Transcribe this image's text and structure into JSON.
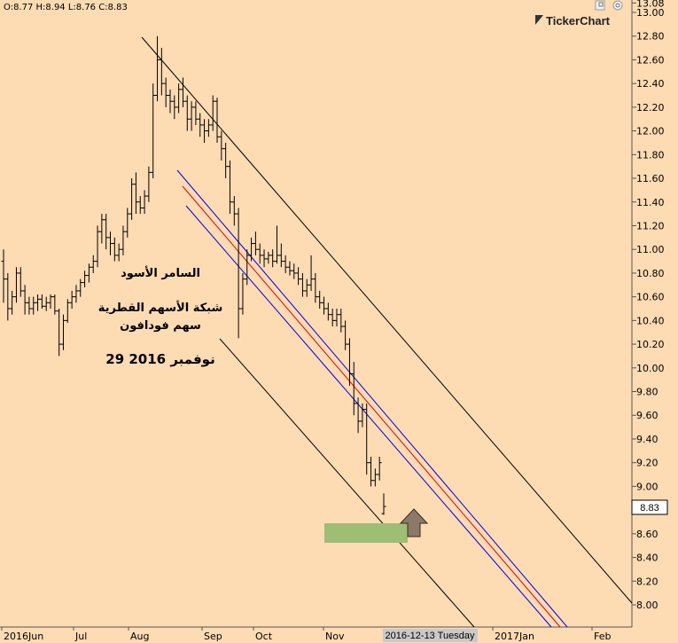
{
  "header": {
    "ohlc": "O:8.77  H:8.94  L:8.76  C:8.83",
    "brand": "TickerChart"
  },
  "annotations": {
    "line1": "السامر الأسود",
    "line2": "شبكة الأسهم القطرية",
    "line3": "سهم فودافون",
    "line4": "29 نوفمبر 2016"
  },
  "current_price_label": "8.83",
  "date_marker": "2016-12-13 Tuesday",
  "chart_data": {
    "type": "ohlc",
    "title": "",
    "ylim": [
      7.93,
      13.08
    ],
    "y_ticks": [
      "13.08",
      "13.00",
      "12.80",
      "12.60",
      "12.40",
      "12.20",
      "12.00",
      "11.80",
      "11.60",
      "11.40",
      "11.20",
      "11.00",
      "10.80",
      "10.60",
      "10.40",
      "10.20",
      "10.00",
      "9.80",
      "9.60",
      "9.40",
      "9.20",
      "9.00",
      "8.80",
      "8.60",
      "8.40",
      "8.20",
      "8.00"
    ],
    "x_ticks": [
      "2016Jun",
      "Jul",
      "Aug",
      "Sep",
      "Oct",
      "Nov",
      "2017Jan",
      "Feb"
    ],
    "last_close": 8.83,
    "bars": [
      [
        10.9,
        11.0,
        10.55,
        10.75
      ],
      [
        10.75,
        10.8,
        10.4,
        10.5
      ],
      [
        10.5,
        10.65,
        10.45,
        10.6
      ],
      [
        10.6,
        10.85,
        10.55,
        10.8
      ],
      [
        10.8,
        10.85,
        10.6,
        10.65
      ],
      [
        10.65,
        10.7,
        10.45,
        10.55
      ],
      [
        10.55,
        10.6,
        10.45,
        10.5
      ],
      [
        10.5,
        10.6,
        10.45,
        10.55
      ],
      [
        10.55,
        10.62,
        10.48,
        10.58
      ],
      [
        10.58,
        10.62,
        10.5,
        10.52
      ],
      [
        10.52,
        10.6,
        10.48,
        10.55
      ],
      [
        10.55,
        10.62,
        10.5,
        10.6
      ],
      [
        10.6,
        10.62,
        10.45,
        10.48
      ],
      [
        10.48,
        10.5,
        10.1,
        10.2
      ],
      [
        10.2,
        10.45,
        10.15,
        10.4
      ],
      [
        10.4,
        10.58,
        10.38,
        10.55
      ],
      [
        10.55,
        10.65,
        10.5,
        10.6
      ],
      [
        10.6,
        10.7,
        10.55,
        10.65
      ],
      [
        10.65,
        10.75,
        10.6,
        10.72
      ],
      [
        10.72,
        10.82,
        10.68,
        10.78
      ],
      [
        10.78,
        10.88,
        10.72,
        10.85
      ],
      [
        10.85,
        10.95,
        10.8,
        10.9
      ],
      [
        10.9,
        11.2,
        10.85,
        11.15
      ],
      [
        11.15,
        11.3,
        11.05,
        11.25
      ],
      [
        11.25,
        11.3,
        11.0,
        11.1
      ],
      [
        11.1,
        11.15,
        10.95,
        11.05
      ],
      [
        11.05,
        11.1,
        10.9,
        10.95
      ],
      [
        10.95,
        11.05,
        10.9,
        11.0
      ],
      [
        11.0,
        11.2,
        10.95,
        11.15
      ],
      [
        11.15,
        11.35,
        11.1,
        11.3
      ],
      [
        11.3,
        11.6,
        11.25,
        11.55
      ],
      [
        11.55,
        11.65,
        11.3,
        11.4
      ],
      [
        11.4,
        11.45,
        11.3,
        11.35
      ],
      [
        11.35,
        11.5,
        11.3,
        11.45
      ],
      [
        11.45,
        11.7,
        11.4,
        11.65
      ],
      [
        11.65,
        12.4,
        11.6,
        12.3
      ],
      [
        12.3,
        12.8,
        12.25,
        12.6
      ],
      [
        12.6,
        12.7,
        12.3,
        12.4
      ],
      [
        12.4,
        12.45,
        12.2,
        12.3
      ],
      [
        12.3,
        12.35,
        12.15,
        12.25
      ],
      [
        12.25,
        12.3,
        12.1,
        12.2
      ],
      [
        12.2,
        12.4,
        12.15,
        12.35
      ],
      [
        12.35,
        12.45,
        12.2,
        12.25
      ],
      [
        12.25,
        12.3,
        12.0,
        12.1
      ],
      [
        12.1,
        12.25,
        12.0,
        12.2
      ],
      [
        12.2,
        12.25,
        12.05,
        12.1
      ],
      [
        12.1,
        12.15,
        11.95,
        12.05
      ],
      [
        12.05,
        12.1,
        11.9,
        12.0
      ],
      [
        12.0,
        12.1,
        11.95,
        12.05
      ],
      [
        12.05,
        12.3,
        12.0,
        12.25
      ],
      [
        12.25,
        12.28,
        11.9,
        11.95
      ],
      [
        11.95,
        12.0,
        11.75,
        11.85
      ],
      [
        11.85,
        11.9,
        11.6,
        11.7
      ],
      [
        11.7,
        11.75,
        11.3,
        11.4
      ],
      [
        11.4,
        11.45,
        11.2,
        11.3
      ],
      [
        11.3,
        11.35,
        10.25,
        10.5
      ],
      [
        10.5,
        10.8,
        10.45,
        10.75
      ],
      [
        10.75,
        11.0,
        10.7,
        10.95
      ],
      [
        10.95,
        11.1,
        10.9,
        11.05
      ],
      [
        11.05,
        11.15,
        10.95,
        11.0
      ],
      [
        11.0,
        11.05,
        10.88,
        10.95
      ],
      [
        10.95,
        11.0,
        10.85,
        10.92
      ],
      [
        10.92,
        10.98,
        10.88,
        10.95
      ],
      [
        10.95,
        11.0,
        10.85,
        10.9
      ],
      [
        10.9,
        11.2,
        10.88,
        10.95
      ],
      [
        10.95,
        11.05,
        10.85,
        10.9
      ],
      [
        10.9,
        10.95,
        10.8,
        10.85
      ],
      [
        10.85,
        10.9,
        10.78,
        10.82
      ],
      [
        10.82,
        10.88,
        10.75,
        10.8
      ],
      [
        10.8,
        10.85,
        10.7,
        10.75
      ],
      [
        10.75,
        10.8,
        10.6,
        10.65
      ],
      [
        10.65,
        10.75,
        10.6,
        10.7
      ],
      [
        10.7,
        10.95,
        10.65,
        10.75
      ],
      [
        10.75,
        10.8,
        10.55,
        10.6
      ],
      [
        10.6,
        10.65,
        10.5,
        10.55
      ],
      [
        10.55,
        10.6,
        10.45,
        10.5
      ],
      [
        10.5,
        10.55,
        10.4,
        10.45
      ],
      [
        10.45,
        10.5,
        10.35,
        10.4
      ],
      [
        10.4,
        10.5,
        10.35,
        10.45
      ],
      [
        10.45,
        10.5,
        10.3,
        10.35
      ],
      [
        10.35,
        10.4,
        10.15,
        10.2
      ],
      [
        10.2,
        10.25,
        9.85,
        9.95
      ],
      [
        9.95,
        10.05,
        9.6,
        9.7
      ],
      [
        9.7,
        9.75,
        9.45,
        9.55
      ],
      [
        9.55,
        9.7,
        9.5,
        9.65
      ],
      [
        9.65,
        9.7,
        9.1,
        9.2
      ],
      [
        9.2,
        9.25,
        9.0,
        9.05
      ],
      [
        9.05,
        9.15,
        9.0,
        9.1
      ],
      [
        9.1,
        9.25,
        9.05,
        9.2
      ],
      [
        8.77,
        8.94,
        8.76,
        8.83
      ]
    ]
  }
}
